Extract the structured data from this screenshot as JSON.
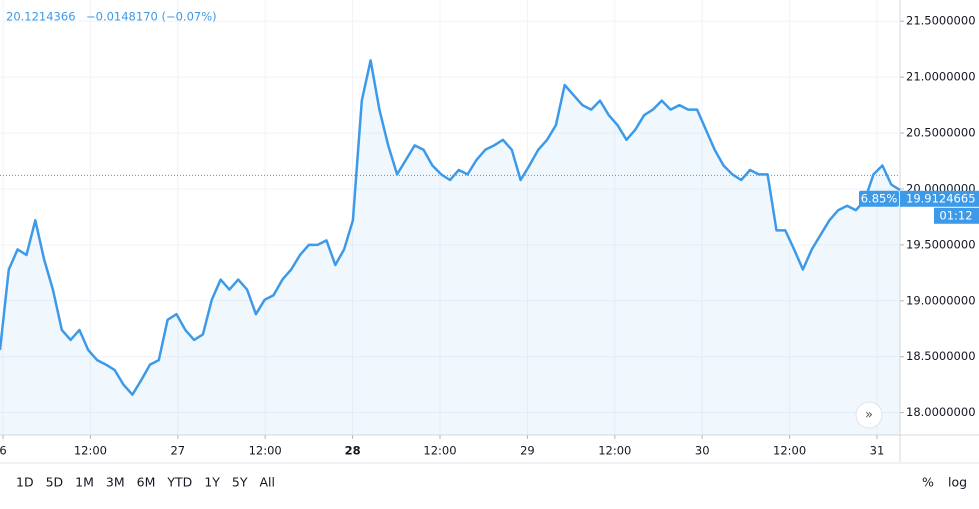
{
  "chart_data": {
    "type": "line",
    "last_price": 20.1214366,
    "change": "−0.0148170 (−0.07%)",
    "x_labels": [
      "6",
      "12:00",
      "27",
      "12:00",
      "28",
      "12:00",
      "29",
      "12:00",
      "30",
      "12:00",
      "31"
    ],
    "series": [
      {
        "color": "#3d9ae8",
        "values": [
          18.56,
          19.28,
          19.46,
          19.41,
          19.72,
          19.37,
          19.1,
          18.74,
          18.65,
          18.74,
          18.56,
          18.47,
          18.43,
          18.38,
          18.25,
          18.16,
          18.29,
          18.43,
          18.47,
          18.83,
          18.88,
          18.74,
          18.65,
          18.7,
          19.01,
          19.19,
          19.1,
          19.19,
          19.1,
          18.88,
          19.01,
          19.05,
          19.19,
          19.28,
          19.41,
          19.5,
          19.5,
          19.54,
          19.32,
          19.46,
          19.72,
          20.79,
          21.15,
          20.71,
          20.39,
          20.13,
          20.26,
          20.39,
          20.35,
          20.21,
          20.13,
          20.08,
          20.17,
          20.13,
          20.26,
          20.35,
          20.39,
          20.44,
          20.35,
          20.08,
          20.21,
          20.35,
          20.44,
          20.57,
          20.93,
          20.84,
          20.75,
          20.71,
          20.79,
          20.66,
          20.57,
          20.44,
          20.53,
          20.66,
          20.71,
          20.79,
          20.71,
          20.75,
          20.71,
          20.71,
          20.53,
          20.35,
          20.21,
          20.13,
          20.08,
          20.17,
          20.13,
          20.13,
          19.63,
          19.63,
          19.46,
          19.28,
          19.46,
          19.59,
          19.72,
          19.81,
          19.85,
          19.81,
          19.9,
          20.13,
          20.21,
          20.04,
          19.99
        ]
      }
    ],
    "ylim": [
      17.8,
      21.69
    ],
    "yticks": [
      {
        "value": 18,
        "label": "18.0000000"
      },
      {
        "value": 18.5,
        "label": "18.5000000"
      },
      {
        "value": 19,
        "label": "19.0000000"
      },
      {
        "value": 19.5,
        "label": "19.5000000"
      },
      {
        "value": 20,
        "label": "20.0000000"
      },
      {
        "value": 20.5,
        "label": "20.5000000"
      },
      {
        "value": 21,
        "label": "21.0000000"
      },
      {
        "value": 21.5,
        "label": "21.5000000"
      }
    ],
    "grid": true,
    "price_tag": {
      "percent": "6.85%",
      "value": 19.9124665,
      "countdown": "01:12"
    }
  },
  "toolbar": {
    "ranges": [
      "1D",
      "5D",
      "1M",
      "3M",
      "6M",
      "YTD",
      "1Y",
      "5Y",
      "All"
    ],
    "options": [
      "%",
      "log"
    ]
  }
}
